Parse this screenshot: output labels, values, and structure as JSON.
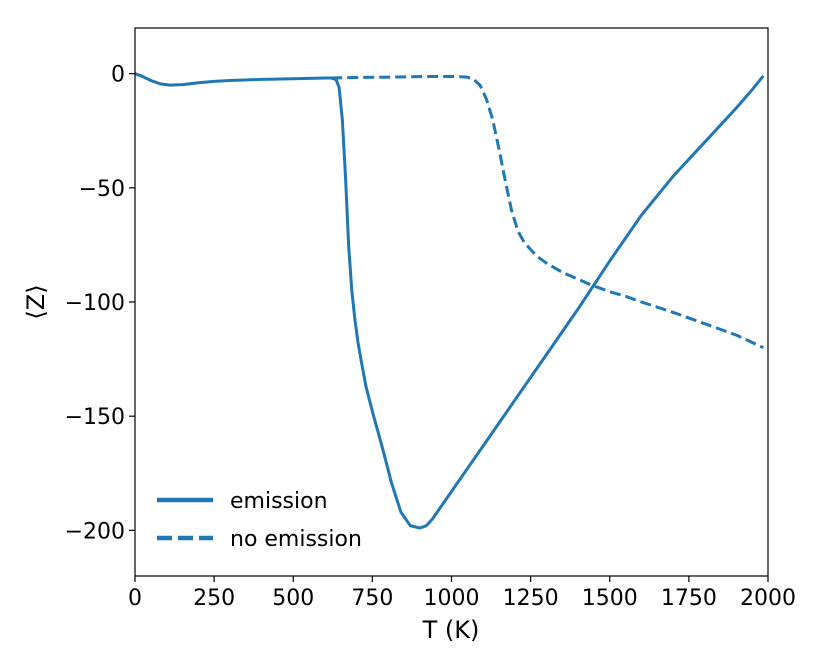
{
  "chart_data": {
    "type": "line",
    "xlabel": "T (K)",
    "ylabel": "⟨Z⟩",
    "xlim": [
      0,
      2000
    ],
    "ylim": [
      -220,
      20
    ],
    "xticks": [
      0,
      250,
      500,
      750,
      1000,
      1250,
      1500,
      1750,
      2000
    ],
    "yticks": [
      0,
      -50,
      -100,
      -150,
      -200
    ],
    "ytick_labels": [
      "0",
      "−50",
      "−100",
      "−150",
      "−200"
    ],
    "grid": false,
    "legend_position": "lower-left",
    "color": "#1f77b4",
    "series": [
      {
        "name": "emission",
        "style": "solid",
        "x": [
          0,
          20,
          50,
          80,
          110,
          150,
          200,
          250,
          300,
          400,
          500,
          600,
          620,
          635,
          645,
          655,
          665,
          675,
          685,
          695,
          705,
          715,
          730,
          750,
          780,
          810,
          840,
          870,
          900,
          920,
          940,
          960,
          1000,
          1050,
          1100,
          1200,
          1300,
          1400,
          1500,
          1600,
          1700,
          1800,
          1900,
          1950,
          1985
        ],
        "y": [
          0,
          -1,
          -3,
          -4.5,
          -5,
          -4.8,
          -4,
          -3.4,
          -3,
          -2.5,
          -2.2,
          -1.9,
          -1.9,
          -2.5,
          -6,
          -20,
          -45,
          -75,
          -95,
          -108,
          -118,
          -126,
          -137,
          -148,
          -163,
          -179,
          -192,
          -198,
          -199,
          -198,
          -195,
          -191,
          -183,
          -173,
          -163,
          -143,
          -123,
          -103,
          -82,
          -62,
          -45,
          -30,
          -15,
          -7,
          -1
        ]
      },
      {
        "name": "no emission",
        "style": "dashed",
        "x": [
          620,
          700,
          800,
          900,
          1000,
          1050,
          1070,
          1090,
          1110,
          1130,
          1150,
          1170,
          1190,
          1210,
          1230,
          1250,
          1270,
          1300,
          1350,
          1400,
          1450,
          1500,
          1550,
          1600,
          1700,
          1800,
          1900,
          1985
        ],
        "y": [
          -1.9,
          -1.7,
          -1.5,
          -1.3,
          -1.2,
          -1.5,
          -2.5,
          -5,
          -11,
          -20,
          -33,
          -47,
          -60,
          -69,
          -74,
          -77,
          -80,
          -83,
          -87,
          -90,
          -93,
          -95.5,
          -97.5,
          -100,
          -104.5,
          -109.5,
          -114.5,
          -120
        ]
      }
    ]
  }
}
